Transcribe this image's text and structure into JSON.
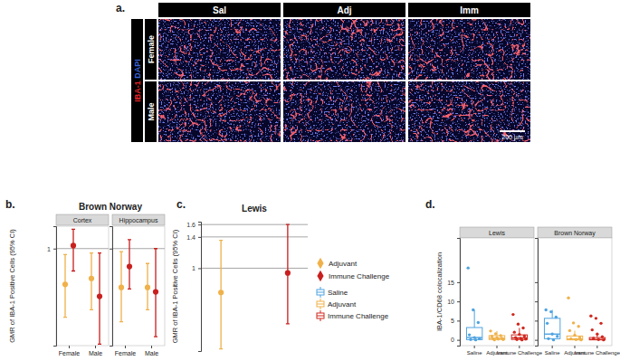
{
  "image_panel": {
    "panel_label": "a.",
    "columns": [
      "Sal",
      "Adj",
      "Imm"
    ],
    "rows": [
      "Female",
      "Male"
    ],
    "stain_labels": [
      {
        "text": "IBA-1",
        "color": "#e8262a"
      },
      {
        "text": "DAPI",
        "color": "#3a63d8"
      }
    ],
    "scale_bar": "200 µm"
  },
  "chart_data": [
    {
      "type": "point",
      "panel_label": "b.",
      "title": "Brown Norway",
      "y_label": "GMR of IBA-1 Positive Cells (95% CI)",
      "categories": [
        "Female",
        "Male"
      ],
      "ylim": [
        0.35,
        1.15
      ],
      "yticks": [
        1
      ],
      "grid": true,
      "facets": [
        {
          "title": "Cortex",
          "series": [
            {
              "color": "#f0b14a",
              "marker": "circle",
              "values": [
                0.76,
                0.8
              ],
              "lower": [
                0.54,
                0.59
              ],
              "upper": [
                0.96,
                0.97
              ]
            },
            {
              "color": "#c8201e",
              "marker": "circle",
              "values": [
                1.02,
                0.68
              ],
              "lower": [
                0.85,
                0.36
              ],
              "upper": [
                1.13,
                0.97
              ]
            }
          ]
        },
        {
          "title": "Hippocampus",
          "series": [
            {
              "color": "#f0b14a",
              "marker": "circle",
              "values": [
                0.74,
                0.74
              ],
              "lower": [
                0.51,
                0.59
              ],
              "upper": [
                0.98,
                0.9
              ]
            },
            {
              "color": "#c8201e",
              "marker": "circle",
              "values": [
                0.88,
                0.71
              ],
              "lower": [
                0.73,
                0.41
              ],
              "upper": [
                1.06,
                1.0
              ]
            }
          ]
        }
      ]
    },
    {
      "type": "point",
      "panel_label": "c.",
      "title": "Lewis",
      "y_label": "GMR of IBA-1 Positive Cells (95% CI)",
      "categories": [
        "Adjuvant",
        "Immune Challenge"
      ],
      "tick_labels": "y",
      "log": "y",
      "ylim": [
        0.41,
        1.65
      ],
      "yticks": [
        1,
        1.4,
        1.6
      ],
      "grid": true,
      "legend": "right",
      "series": [
        {
          "name": "Adjuvant",
          "color": "#f0b14a",
          "marker": "circle",
          "values": [
            0.77,
            null
          ],
          "lower": [
            0.42,
            null
          ],
          "upper": [
            1.35,
            null
          ]
        },
        {
          "name": "Immune Challenge",
          "color": "#c8201e",
          "marker": "circle",
          "values": [
            null,
            0.95
          ],
          "lower": [
            null,
            0.55
          ],
          "upper": [
            null,
            1.6
          ]
        }
      ]
    },
    {
      "type": "box",
      "panel_label": "d.",
      "y_label": "IBA-1/CD68 colocalization",
      "categories": [
        "Saline",
        "Adjuvant",
        "Immune Challenge"
      ],
      "colors": [
        "#4fa3e0",
        "#f0b14a",
        "#d0281f"
      ],
      "ylim": [
        -1.5,
        26.5
      ],
      "yticks": [
        0,
        5,
        10,
        15
      ],
      "legend": "left",
      "facets": [
        {
          "title": "Lewis",
          "boxes": [
            {
              "q1": 0.05,
              "median": 0.6,
              "q3": 3.2,
              "whisker_low": 0,
              "whisker_high": 7.8,
              "points": [
                18.7,
                7.8,
                4.5,
                1.3,
                0.6,
                0.3,
                0.1,
                0
              ]
            },
            {
              "q1": 0.1,
              "median": 0.4,
              "q3": 1.1,
              "whisker_low": 0,
              "whisker_high": 2.3,
              "points": [
                2.3,
                1.6,
                1.1,
                0.9,
                0.6,
                0.4,
                0.3,
                0.2,
                0.1,
                0
              ]
            },
            {
              "q1": 0.1,
              "median": 0.5,
              "q3": 1.3,
              "whisker_low": 0,
              "whisker_high": 3.1,
              "points": [
                6.6,
                4.1,
                3.1,
                2.0,
                1.4,
                1.0,
                0.6,
                0.4,
                0.2,
                0.1,
                0
              ]
            }
          ]
        },
        {
          "title": "Brown Norway",
          "boxes": [
            {
              "q1": 0.3,
              "median": 1.5,
              "q3": 5.6,
              "whisker_low": 0,
              "whisker_high": 7.8,
              "points": [
                7.8,
                7.3,
                5.9,
                4.3,
                1.5,
                0.9,
                0.3,
                0
              ]
            },
            {
              "q1": 0,
              "median": 0.2,
              "q3": 1.0,
              "whisker_low": 0,
              "whisker_high": 2.4,
              "points": [
                10.9,
                4.4,
                3.5,
                2.4,
                1.2,
                0.6,
                0.3,
                0.1,
                0
              ]
            },
            {
              "q1": 0,
              "median": 0.1,
              "q3": 0.6,
              "whisker_low": 0,
              "whisker_high": 1.5,
              "points": [
                6.2,
                5.6,
                4.3,
                2.6,
                1.5,
                0.8,
                0.4,
                0.1,
                0
              ]
            }
          ]
        }
      ]
    }
  ]
}
